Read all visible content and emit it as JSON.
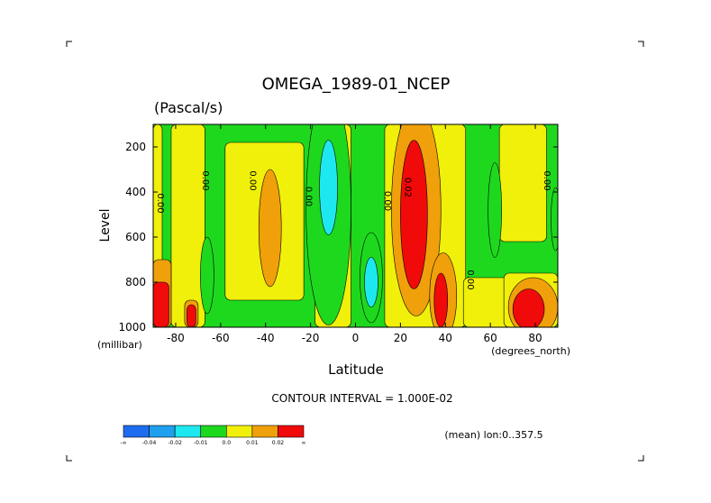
{
  "chart_data": {
    "type": "heatmap",
    "title": "OMEGA_1989-01_NCEP",
    "units": "(Pascal/s)",
    "xlabel": "Latitude",
    "ylabel": "Level",
    "x_unit_label": "(degrees_north)",
    "y_unit_label": "(millibar)",
    "xlim": [
      -90,
      90
    ],
    "ylim": [
      100,
      1000
    ],
    "y_inverted": true,
    "x_ticks": [
      {
        "value": -80,
        "label": "-80"
      },
      {
        "value": -60,
        "label": "-60"
      },
      {
        "value": -40,
        "label": "-40"
      },
      {
        "value": -20,
        "label": "-20"
      },
      {
        "value": 0,
        "label": "0"
      },
      {
        "value": 20,
        "label": "20"
      },
      {
        "value": 40,
        "label": "40"
      },
      {
        "value": 60,
        "label": "60"
      },
      {
        "value": 80,
        "label": "80"
      }
    ],
    "y_ticks": [
      {
        "value": 200,
        "label": "200"
      },
      {
        "value": 400,
        "label": "400"
      },
      {
        "value": 600,
        "label": "600"
      },
      {
        "value": 800,
        "label": "800"
      },
      {
        "value": 1000,
        "label": "1000"
      }
    ],
    "contour_interval_text": "CONTOUR INTERVAL = 1.000E-02",
    "mean_text": "(mean) lon:0..357.5",
    "colorbar": {
      "colors": [
        "#1e6cf0",
        "#1ea0ee",
        "#1ee8ef",
        "#1ed81e",
        "#f0f00a",
        "#f0a00a",
        "#f00a0a"
      ],
      "labels": [
        "-∞",
        "-0.04",
        "-0.02",
        "-0.01",
        "0.0",
        "0.01",
        "0.02",
        "∞"
      ]
    },
    "regions": [
      {
        "level": 4,
        "value": 0.0,
        "shape": "rect",
        "lat0": -90,
        "lat1": -86,
        "p0": 100,
        "p1": 1000
      },
      {
        "level": 4,
        "value": 0.0,
        "shape": "rect",
        "lat0": -82,
        "lat1": -67,
        "p0": 100,
        "p1": 1000
      },
      {
        "level": 4,
        "value": 0.0,
        "shape": "rect",
        "lat0": -58,
        "lat1": -23,
        "p0": 180,
        "p1": 880
      },
      {
        "level": 4,
        "value": 0.0,
        "shape": "rect",
        "lat0": -18,
        "lat1": -2,
        "p0": 100,
        "p1": 1000
      },
      {
        "level": 4,
        "value": 0.0,
        "shape": "rect",
        "lat0": 13,
        "lat1": 49,
        "p0": 100,
        "p1": 1000
      },
      {
        "level": 4,
        "value": 0.0,
        "shape": "rect",
        "lat0": 48,
        "lat1": 70,
        "p0": 780,
        "p1": 1000
      },
      {
        "level": 4,
        "value": 0.0,
        "shape": "rect",
        "lat0": 64,
        "lat1": 85,
        "p0": 100,
        "p1": 620
      },
      {
        "level": 4,
        "value": 0.0,
        "shape": "rect",
        "lat0": 66,
        "lat1": 90,
        "p0": 760,
        "p1": 1000
      },
      {
        "level": 5,
        "value": 0.01,
        "shape": "rect",
        "lat0": -90,
        "lat1": -82,
        "p0": 700,
        "p1": 1000
      },
      {
        "level": 5,
        "value": 0.01,
        "shape": "rect",
        "lat0": -76,
        "lat1": -70,
        "p0": 880,
        "p1": 1000
      },
      {
        "level": 5,
        "value": 0.01,
        "shape": "ellipse",
        "lat": -38,
        "p": 560,
        "dlat": 5,
        "dp": 260
      },
      {
        "level": 5,
        "value": 0.01,
        "shape": "ellipse",
        "lat": 27,
        "p": 480,
        "dlat": 11,
        "dp": 470
      },
      {
        "level": 5,
        "value": 0.01,
        "shape": "ellipse",
        "lat": 39,
        "p": 860,
        "dlat": 6,
        "dp": 190
      },
      {
        "level": 5,
        "value": 0.01,
        "shape": "ellipse",
        "lat": 79,
        "p": 910,
        "dlat": 11,
        "dp": 130
      },
      {
        "level": 6,
        "value": 0.02,
        "shape": "rect",
        "lat0": -90,
        "lat1": -83,
        "p0": 800,
        "p1": 1000
      },
      {
        "level": 6,
        "value": 0.02,
        "shape": "rect",
        "lat0": -75,
        "lat1": -71,
        "p0": 900,
        "p1": 1000
      },
      {
        "level": 6,
        "value": 0.02,
        "shape": "ellipse",
        "lat": 26,
        "p": 500,
        "dlat": 6,
        "dp": 330
      },
      {
        "level": 6,
        "value": 0.02,
        "shape": "ellipse",
        "lat": 38,
        "p": 880,
        "dlat": 3,
        "dp": 120
      },
      {
        "level": 6,
        "value": 0.02,
        "shape": "ellipse",
        "lat": 77,
        "p": 920,
        "dlat": 7,
        "dp": 90
      },
      {
        "level": 3,
        "value": -0.01,
        "shape": "ellipse",
        "lat": -66,
        "p": 770,
        "dlat": 3,
        "dp": 170
      },
      {
        "level": 3,
        "value": -0.01,
        "shape": "ellipse",
        "lat": -12,
        "p": 470,
        "dlat": 10,
        "dp": 520
      },
      {
        "level": 3,
        "value": -0.01,
        "shape": "ellipse",
        "lat": 7,
        "p": 780,
        "dlat": 5,
        "dp": 200
      },
      {
        "level": 3,
        "value": -0.01,
        "shape": "ellipse",
        "lat": 62,
        "p": 480,
        "dlat": 3,
        "dp": 210
      },
      {
        "level": 3,
        "value": -0.01,
        "shape": "ellipse",
        "lat": 89,
        "p": 520,
        "dlat": 2,
        "dp": 140
      },
      {
        "level": 2,
        "value": -0.02,
        "shape": "ellipse",
        "lat": -12,
        "p": 380,
        "dlat": 4,
        "dp": 210
      },
      {
        "level": 2,
        "value": -0.02,
        "shape": "ellipse",
        "lat": 7,
        "p": 800,
        "dlat": 3,
        "dp": 110
      }
    ],
    "contour_labels": [
      {
        "text": "0.00",
        "lat": -88,
        "p": 450
      },
      {
        "text": "0.00",
        "lat": -68,
        "p": 350
      },
      {
        "text": "0.00",
        "lat": -47,
        "p": 350
      },
      {
        "text": "0.00",
        "lat": -22,
        "p": 420
      },
      {
        "text": "0.00",
        "lat": 13,
        "p": 440
      },
      {
        "text": "0.02",
        "lat": 22,
        "p": 380
      },
      {
        "text": "0.00",
        "lat": 50,
        "p": 790
      },
      {
        "text": "0.00",
        "lat": 84,
        "p": 350
      }
    ]
  }
}
